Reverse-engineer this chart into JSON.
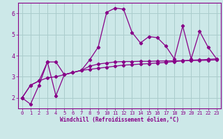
{
  "xlabel": "Windchill (Refroidissement éolien,°C)",
  "bg_color": "#cce8e8",
  "grid_color": "#aacccc",
  "line_color": "#880088",
  "xlim": [
    -0.5,
    23.5
  ],
  "ylim": [
    1.5,
    6.5
  ],
  "xticks": [
    0,
    1,
    2,
    3,
    4,
    5,
    6,
    7,
    8,
    9,
    10,
    11,
    12,
    13,
    14,
    15,
    16,
    17,
    18,
    19,
    20,
    21,
    22,
    23
  ],
  "yticks": [
    2,
    3,
    4,
    5,
    6
  ],
  "series": [
    [
      2.0,
      1.7,
      2.6,
      3.7,
      2.1,
      3.1,
      3.2,
      3.3,
      3.8,
      4.4,
      6.05,
      6.25,
      6.2,
      5.1,
      4.6,
      4.9,
      4.85,
      4.45,
      3.85,
      5.4,
      3.85,
      5.15,
      4.4,
      3.85
    ],
    [
      2.0,
      2.6,
      2.8,
      3.7,
      3.7,
      3.1,
      3.2,
      3.3,
      3.5,
      3.6,
      3.65,
      3.7,
      3.72,
      3.72,
      3.73,
      3.73,
      3.74,
      3.75,
      3.75,
      3.76,
      3.77,
      3.77,
      3.78,
      3.8
    ],
    [
      2.0,
      2.6,
      2.8,
      2.95,
      3.0,
      3.1,
      3.2,
      3.3,
      3.35,
      3.4,
      3.45,
      3.5,
      3.55,
      3.57,
      3.6,
      3.62,
      3.65,
      3.68,
      3.72,
      3.75,
      3.78,
      3.8,
      3.82,
      3.85
    ]
  ]
}
